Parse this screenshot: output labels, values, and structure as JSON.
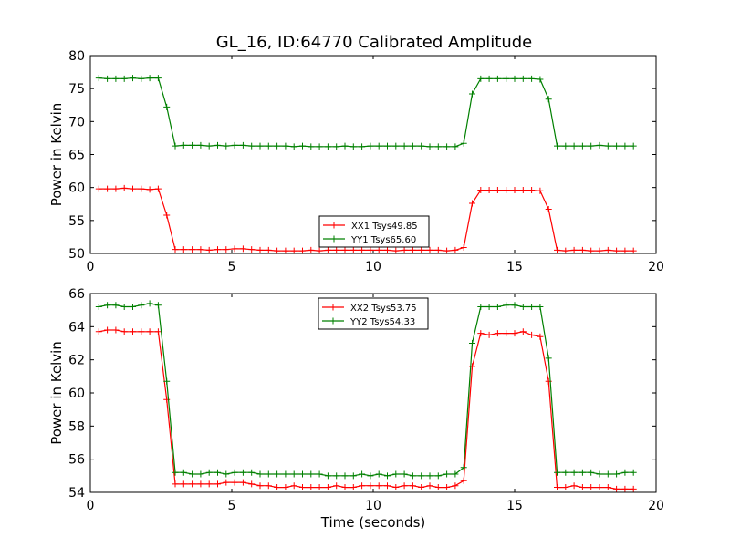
{
  "title": "GL_16, ID:64770 Calibrated Amplitude",
  "colors": {
    "red": "#ff0000",
    "green": "#008000"
  },
  "chart_data": [
    {
      "type": "line",
      "ylabel": "Power in Kelvin",
      "xlabel": "",
      "xlim": [
        0,
        20
      ],
      "ylim": [
        50,
        80
      ],
      "xticks": [
        "0",
        "5",
        "10",
        "15",
        "20"
      ],
      "yticks": [
        "50",
        "55",
        "60",
        "65",
        "70",
        "75",
        "80"
      ],
      "legend_position": "lower-center",
      "x": [
        0.3,
        0.6,
        0.9,
        1.2,
        1.5,
        1.8,
        2.1,
        2.4,
        2.7,
        3.0,
        3.3,
        3.6,
        3.9,
        4.2,
        4.5,
        4.8,
        5.1,
        5.4,
        5.7,
        6.0,
        6.3,
        6.6,
        6.9,
        7.2,
        7.5,
        7.8,
        8.1,
        8.4,
        8.7,
        9.0,
        9.3,
        9.6,
        9.9,
        10.2,
        10.5,
        10.8,
        11.1,
        11.4,
        11.7,
        12.0,
        12.3,
        12.6,
        12.9,
        13.2,
        13.5,
        13.8,
        14.1,
        14.4,
        14.7,
        15.0,
        15.3,
        15.6,
        15.9,
        16.2,
        16.5,
        16.8,
        17.1,
        17.4,
        17.7,
        18.0,
        18.3,
        18.6,
        18.9,
        19.2
      ],
      "series": [
        {
          "name": "XX1 Tsys49.85",
          "color": "#ff0000",
          "values": [
            59.8,
            59.8,
            59.8,
            59.9,
            59.8,
            59.8,
            59.7,
            59.8,
            55.8,
            50.6,
            50.6,
            50.6,
            50.6,
            50.5,
            50.6,
            50.6,
            50.7,
            50.7,
            50.6,
            50.5,
            50.5,
            50.4,
            50.4,
            50.4,
            50.4,
            50.5,
            50.4,
            50.5,
            50.5,
            50.5,
            50.5,
            50.5,
            50.5,
            50.5,
            50.5,
            50.4,
            50.5,
            50.5,
            50.5,
            50.5,
            50.5,
            50.4,
            50.5,
            50.9,
            57.6,
            59.6,
            59.6,
            59.6,
            59.6,
            59.6,
            59.6,
            59.6,
            59.5,
            56.7,
            50.5,
            50.4,
            50.5,
            50.5,
            50.4,
            50.4,
            50.5,
            50.4,
            50.4,
            50.4
          ]
        },
        {
          "name": "YY1 Tsys65.60",
          "color": "#008000",
          "values": [
            76.6,
            76.5,
            76.5,
            76.5,
            76.6,
            76.5,
            76.6,
            76.6,
            72.2,
            66.3,
            66.4,
            66.4,
            66.4,
            66.3,
            66.4,
            66.3,
            66.4,
            66.4,
            66.3,
            66.3,
            66.3,
            66.3,
            66.3,
            66.2,
            66.3,
            66.2,
            66.2,
            66.2,
            66.2,
            66.3,
            66.2,
            66.2,
            66.3,
            66.3,
            66.3,
            66.3,
            66.3,
            66.3,
            66.3,
            66.2,
            66.2,
            66.2,
            66.2,
            66.7,
            74.2,
            76.5,
            76.5,
            76.5,
            76.5,
            76.5,
            76.5,
            76.5,
            76.4,
            73.4,
            66.3,
            66.3,
            66.3,
            66.3,
            66.3,
            66.4,
            66.3,
            66.3,
            66.3,
            66.3
          ]
        }
      ]
    },
    {
      "type": "line",
      "ylabel": "Power in Kelvin",
      "xlabel": "Time (seconds)",
      "xlim": [
        0,
        20
      ],
      "ylim": [
        54,
        66
      ],
      "xticks": [
        "0",
        "5",
        "10",
        "15",
        "20"
      ],
      "yticks": [
        "54",
        "56",
        "58",
        "60",
        "62",
        "64",
        "66"
      ],
      "legend_position": "upper-center",
      "x": [
        0.3,
        0.6,
        0.9,
        1.2,
        1.5,
        1.8,
        2.1,
        2.4,
        2.7,
        3.0,
        3.3,
        3.6,
        3.9,
        4.2,
        4.5,
        4.8,
        5.1,
        5.4,
        5.7,
        6.0,
        6.3,
        6.6,
        6.9,
        7.2,
        7.5,
        7.8,
        8.1,
        8.4,
        8.7,
        9.0,
        9.3,
        9.6,
        9.9,
        10.2,
        10.5,
        10.8,
        11.1,
        11.4,
        11.7,
        12.0,
        12.3,
        12.6,
        12.9,
        13.2,
        13.5,
        13.8,
        14.1,
        14.4,
        14.7,
        15.0,
        15.3,
        15.6,
        15.9,
        16.2,
        16.5,
        16.8,
        17.1,
        17.4,
        17.7,
        18.0,
        18.3,
        18.6,
        18.9,
        19.2
      ],
      "series": [
        {
          "name": "XX2 Tsys53.75",
          "color": "#ff0000",
          "values": [
            63.7,
            63.8,
            63.8,
            63.7,
            63.7,
            63.7,
            63.7,
            63.7,
            59.6,
            54.5,
            54.5,
            54.5,
            54.5,
            54.5,
            54.5,
            54.6,
            54.6,
            54.6,
            54.5,
            54.4,
            54.4,
            54.3,
            54.3,
            54.4,
            54.3,
            54.3,
            54.3,
            54.3,
            54.4,
            54.3,
            54.3,
            54.4,
            54.4,
            54.4,
            54.4,
            54.3,
            54.4,
            54.4,
            54.3,
            54.4,
            54.3,
            54.3,
            54.4,
            54.7,
            61.6,
            63.6,
            63.5,
            63.6,
            63.6,
            63.6,
            63.7,
            63.5,
            63.4,
            60.7,
            54.3,
            54.3,
            54.4,
            54.3,
            54.3,
            54.3,
            54.3,
            54.2,
            54.2,
            54.2
          ]
        },
        {
          "name": "YY2 Tsys54.33",
          "color": "#008000",
          "values": [
            65.2,
            65.3,
            65.3,
            65.2,
            65.2,
            65.3,
            65.4,
            65.3,
            60.7,
            55.2,
            55.2,
            55.1,
            55.1,
            55.2,
            55.2,
            55.1,
            55.2,
            55.2,
            55.2,
            55.1,
            55.1,
            55.1,
            55.1,
            55.1,
            55.1,
            55.1,
            55.1,
            55.0,
            55.0,
            55.0,
            55.0,
            55.1,
            55.0,
            55.1,
            55.0,
            55.1,
            55.1,
            55.0,
            55.0,
            55.0,
            55.0,
            55.1,
            55.1,
            55.5,
            63.0,
            65.2,
            65.2,
            65.2,
            65.3,
            65.3,
            65.2,
            65.2,
            65.2,
            62.1,
            55.2,
            55.2,
            55.2,
            55.2,
            55.2,
            55.1,
            55.1,
            55.1,
            55.2,
            55.2
          ]
        }
      ]
    }
  ]
}
